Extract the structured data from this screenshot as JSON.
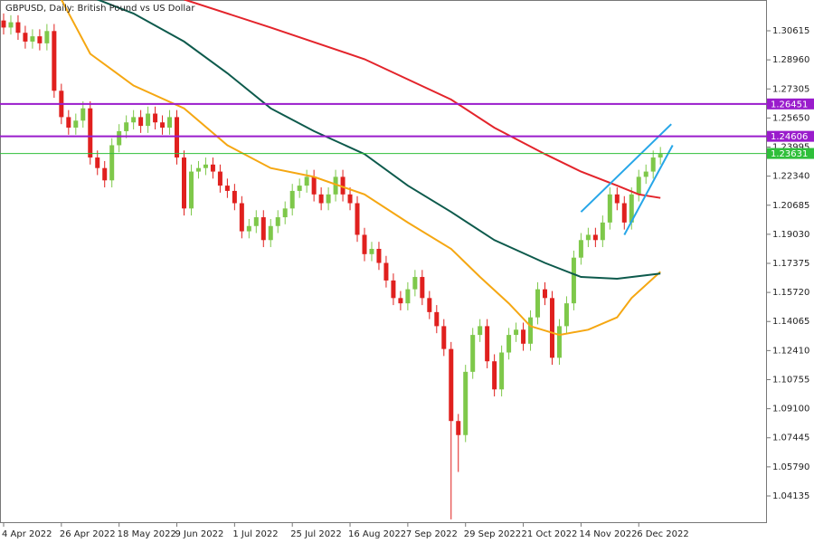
{
  "chart_data": {
    "type": "candlestick",
    "title": "GBPUSD, Daily:  British Pound vs US Dollar",
    "categories": [
      "4 Apr 2022",
      null,
      null,
      null,
      null,
      null,
      null,
      null,
      "26 Apr 2022",
      null,
      null,
      null,
      null,
      null,
      null,
      null,
      "18 May 2022",
      null,
      null,
      null,
      null,
      null,
      null,
      null,
      "9 Jun 2022",
      null,
      null,
      null,
      null,
      null,
      null,
      null,
      "1 Jul 2022",
      null,
      null,
      null,
      null,
      null,
      null,
      null,
      "25 Jul 2022",
      null,
      null,
      null,
      null,
      null,
      null,
      null,
      "16 Aug 2022",
      null,
      null,
      null,
      null,
      null,
      null,
      null,
      "7 Sep 2022",
      null,
      null,
      null,
      null,
      null,
      null,
      null,
      "29 Sep 2022",
      null,
      null,
      null,
      null,
      null,
      null,
      null,
      "21 Oct 2022",
      null,
      null,
      null,
      null,
      null,
      null,
      null,
      "14 Nov 2022",
      null,
      null,
      null,
      null,
      null,
      null,
      null,
      "6 Dec 2022",
      null,
      null,
      null
    ],
    "open": [
      1.312,
      1.308,
      1.311,
      1.305,
      1.3,
      1.303,
      1.299,
      1.306,
      1.272,
      1.257,
      1.251,
      1.255,
      1.262,
      1.234,
      1.228,
      1.221,
      1.241,
      1.249,
      1.254,
      1.257,
      1.252,
      1.259,
      1.254,
      1.251,
      1.257,
      1.234,
      1.205,
      1.226,
      1.228,
      1.23,
      1.226,
      1.218,
      1.215,
      1.208,
      1.192,
      1.195,
      1.2,
      1.187,
      1.195,
      1.2,
      1.205,
      1.215,
      1.218,
      1.223,
      1.213,
      1.208,
      1.213,
      1.223,
      1.213,
      1.208,
      1.19,
      1.179,
      1.182,
      1.174,
      1.164,
      1.154,
      1.151,
      1.159,
      1.166,
      1.154,
      1.146,
      1.138,
      1.125,
      1.084,
      1.076,
      1.112,
      1.133,
      1.138,
      1.118,
      1.102,
      1.123,
      1.133,
      1.136,
      1.128,
      1.143,
      1.159,
      1.154,
      1.12,
      1.138,
      1.151,
      1.177,
      1.187,
      1.19,
      1.187,
      1.197,
      1.213,
      1.208,
      1.197,
      1.213,
      1.223,
      1.226,
      1.234
    ],
    "high": [
      1.316,
      1.315,
      1.315,
      1.309,
      1.307,
      1.307,
      1.31,
      1.31,
      1.276,
      1.261,
      1.259,
      1.266,
      1.266,
      1.238,
      1.232,
      1.245,
      1.253,
      1.258,
      1.261,
      1.261,
      1.263,
      1.263,
      1.258,
      1.261,
      1.261,
      1.238,
      1.23,
      1.232,
      1.234,
      1.234,
      1.23,
      1.222,
      1.219,
      1.212,
      1.199,
      1.204,
      1.204,
      1.199,
      1.204,
      1.209,
      1.219,
      1.222,
      1.227,
      1.227,
      1.217,
      1.217,
      1.227,
      1.227,
      1.217,
      1.212,
      1.194,
      1.186,
      1.186,
      1.178,
      1.168,
      1.158,
      1.163,
      1.17,
      1.17,
      1.158,
      1.15,
      1.142,
      1.129,
      1.088,
      1.116,
      1.137,
      1.142,
      1.142,
      1.122,
      1.127,
      1.137,
      1.14,
      1.14,
      1.147,
      1.163,
      1.163,
      1.158,
      1.142,
      1.155,
      1.181,
      1.191,
      1.194,
      1.194,
      1.201,
      1.217,
      1.217,
      1.212,
      1.217,
      1.227,
      1.23,
      1.238,
      1.24
    ],
    "low": [
      1.304,
      1.304,
      1.301,
      1.296,
      1.296,
      1.295,
      1.295,
      1.268,
      1.253,
      1.247,
      1.247,
      1.251,
      1.23,
      1.224,
      1.217,
      1.217,
      1.237,
      1.245,
      1.25,
      1.248,
      1.248,
      1.25,
      1.247,
      1.247,
      1.23,
      1.201,
      1.201,
      1.222,
      1.224,
      1.222,
      1.214,
      1.211,
      1.204,
      1.188,
      1.188,
      1.191,
      1.183,
      1.183,
      1.191,
      1.196,
      1.201,
      1.211,
      1.214,
      1.209,
      1.204,
      1.204,
      1.209,
      1.209,
      1.204,
      1.186,
      1.175,
      1.175,
      1.17,
      1.16,
      1.15,
      1.147,
      1.147,
      1.155,
      1.15,
      1.142,
      1.134,
      1.121,
      1.028,
      1.055,
      1.072,
      1.108,
      1.129,
      1.114,
      1.098,
      1.098,
      1.119,
      1.129,
      1.124,
      1.124,
      1.139,
      1.15,
      1.116,
      1.116,
      1.134,
      1.147,
      1.173,
      1.183,
      1.183,
      1.183,
      1.193,
      1.204,
      1.193,
      1.193,
      1.209,
      1.219,
      1.222,
      1.23
    ],
    "close": [
      1.308,
      1.311,
      1.305,
      1.3,
      1.303,
      1.299,
      1.306,
      1.272,
      1.257,
      1.251,
      1.255,
      1.262,
      1.234,
      1.228,
      1.221,
      1.241,
      1.249,
      1.254,
      1.257,
      1.252,
      1.259,
      1.254,
      1.251,
      1.257,
      1.234,
      1.205,
      1.226,
      1.228,
      1.23,
      1.226,
      1.218,
      1.215,
      1.208,
      1.192,
      1.195,
      1.2,
      1.187,
      1.195,
      1.2,
      1.205,
      1.215,
      1.218,
      1.223,
      1.213,
      1.208,
      1.213,
      1.223,
      1.213,
      1.208,
      1.19,
      1.179,
      1.182,
      1.174,
      1.164,
      1.154,
      1.151,
      1.159,
      1.166,
      1.154,
      1.146,
      1.138,
      1.125,
      1.084,
      1.076,
      1.112,
      1.133,
      1.138,
      1.118,
      1.102,
      1.123,
      1.133,
      1.136,
      1.128,
      1.143,
      1.159,
      1.154,
      1.12,
      1.138,
      1.151,
      1.177,
      1.187,
      1.19,
      1.187,
      1.197,
      1.213,
      1.208,
      1.197,
      1.213,
      1.223,
      1.226,
      1.234,
      1.236
    ],
    "up_color": "#7ec84a",
    "down_color": "#e0201e",
    "lines": [
      {
        "color": "#f5a712",
        "x": [
          8,
          12,
          18,
          25,
          31,
          37,
          43,
          50,
          56,
          62,
          66,
          70,
          73,
          77,
          81,
          85,
          87,
          91
        ],
        "values": [
          1.324,
          1.293,
          1.275,
          1.262,
          1.241,
          1.228,
          1.223,
          1.213,
          1.197,
          1.182,
          1.166,
          1.151,
          1.138,
          1.133,
          1.136,
          1.143,
          1.154,
          1.169
        ]
      },
      {
        "color": "#0d5a4c",
        "x": [
          13,
          18,
          25,
          31,
          37,
          43,
          50,
          56,
          62,
          68,
          75,
          80,
          85,
          91
        ],
        "values": [
          1.324,
          1.316,
          1.3,
          1.282,
          1.262,
          1.249,
          1.236,
          1.218,
          1.203,
          1.187,
          1.174,
          1.166,
          1.165,
          1.168
        ]
      },
      {
        "color": "#e3242b",
        "x": [
          25,
          37,
          50,
          62,
          68,
          75,
          80,
          85,
          88,
          91
        ],
        "values": [
          1.324,
          1.308,
          1.29,
          1.267,
          1.251,
          1.236,
          1.226,
          1.218,
          1.213,
          1.211
        ]
      },
      {
        "color": "#26a6e8",
        "x": [
          80,
          92.5
        ],
        "values": [
          1.203,
          1.253
        ]
      },
      {
        "color": "#26a6e8",
        "x": [
          86,
          92.7
        ],
        "values": [
          1.19,
          1.241
        ]
      }
    ],
    "levels": [
      {
        "value": 1.26451,
        "color": "#9a1ccc"
      },
      {
        "value": 1.24606,
        "color": "#9a1ccc"
      },
      {
        "value": 1.23631,
        "color": "#2fbf3a"
      }
    ],
    "ylim": [
      1.02589,
      1.32367
    ],
    "yticks": [
      1.30615,
      {
        "value": 1.2896,
        "label": "1.28960"
      },
      1.27305,
      {
        "value": 1.2565,
        "label": "1.25650"
      },
      1.23995,
      {
        "value": 1.2234,
        "label": "1.22340"
      },
      1.20685,
      {
        "value": 1.1903,
        "label": "1.19030"
      },
      1.17375,
      {
        "value": 1.1572,
        "label": "1.15720"
      },
      1.14065,
      {
        "value": 1.1241,
        "label": "1.12410"
      },
      1.10755,
      {
        "value": 1.091,
        "label": "1.09100"
      },
      1.07445,
      {
        "value": 1.0579,
        "label": "1.05790"
      },
      1.04135
    ]
  }
}
